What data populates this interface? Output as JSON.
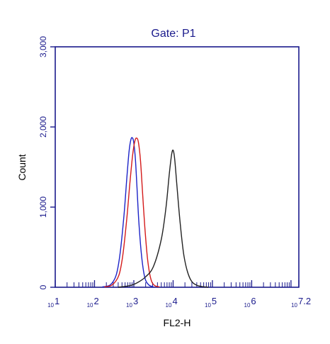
{
  "chart_data": {
    "type": "line",
    "title": "Gate: P1",
    "xlabel": "FL2-H",
    "ylabel": "Count",
    "x_scale": "log10",
    "xlim_log10": [
      1,
      7.2
    ],
    "ylim": [
      0,
      3000
    ],
    "y_ticks": [
      {
        "value": 0,
        "label": "0"
      },
      {
        "value": 1000,
        "label": "1,000"
      },
      {
        "value": 2000,
        "label": "2,000"
      },
      {
        "value": 3000,
        "label": "3,000"
      }
    ],
    "x_ticks": [
      {
        "exp": 1,
        "base": "10",
        "sup": "1"
      },
      {
        "exp": 2,
        "base": "10",
        "sup": "2"
      },
      {
        "exp": 3,
        "base": "10",
        "sup": "3"
      },
      {
        "exp": 4,
        "base": "10",
        "sup": "4"
      },
      {
        "exp": 5,
        "base": "10",
        "sup": "5"
      },
      {
        "exp": 6,
        "base": "10",
        "sup": "6"
      },
      {
        "exp": 7.2,
        "base": "10",
        "sup": "7.2"
      }
    ],
    "grid": false,
    "legend": "none",
    "colors": {
      "axis": "#1a1a8c",
      "text": "#1a1a8c",
      "label": "#000000"
    },
    "series": [
      {
        "color": "#1c23c8",
        "x_log10": [
          2.2,
          2.4,
          2.55,
          2.65,
          2.75,
          2.82,
          2.88,
          2.93,
          2.97,
          3.0,
          3.04,
          3.08,
          3.13,
          3.2,
          3.28,
          3.38,
          3.5
        ],
        "y": [
          5,
          30,
          150,
          420,
          900,
          1350,
          1700,
          1850,
          1860,
          1800,
          1600,
          1250,
          800,
          380,
          120,
          30,
          5
        ]
      },
      {
        "color": "#d41a1a",
        "x_log10": [
          2.25,
          2.45,
          2.62,
          2.72,
          2.82,
          2.9,
          2.97,
          3.03,
          3.08,
          3.12,
          3.17,
          3.22,
          3.28,
          3.35,
          3.43,
          3.52,
          3.65
        ],
        "y": [
          5,
          30,
          150,
          400,
          850,
          1300,
          1650,
          1830,
          1860,
          1800,
          1580,
          1200,
          750,
          350,
          110,
          25,
          5
        ]
      },
      {
        "color": "#222222",
        "x_log10": [
          2.6,
          2.9,
          3.1,
          3.3,
          3.5,
          3.7,
          3.82,
          3.9,
          3.96,
          4.0,
          4.04,
          4.1,
          4.18,
          4.28,
          4.42,
          4.6,
          4.9
        ],
        "y": [
          0,
          20,
          60,
          130,
          260,
          600,
          1000,
          1400,
          1650,
          1710,
          1600,
          1250,
          800,
          380,
          120,
          25,
          0
        ]
      }
    ]
  }
}
